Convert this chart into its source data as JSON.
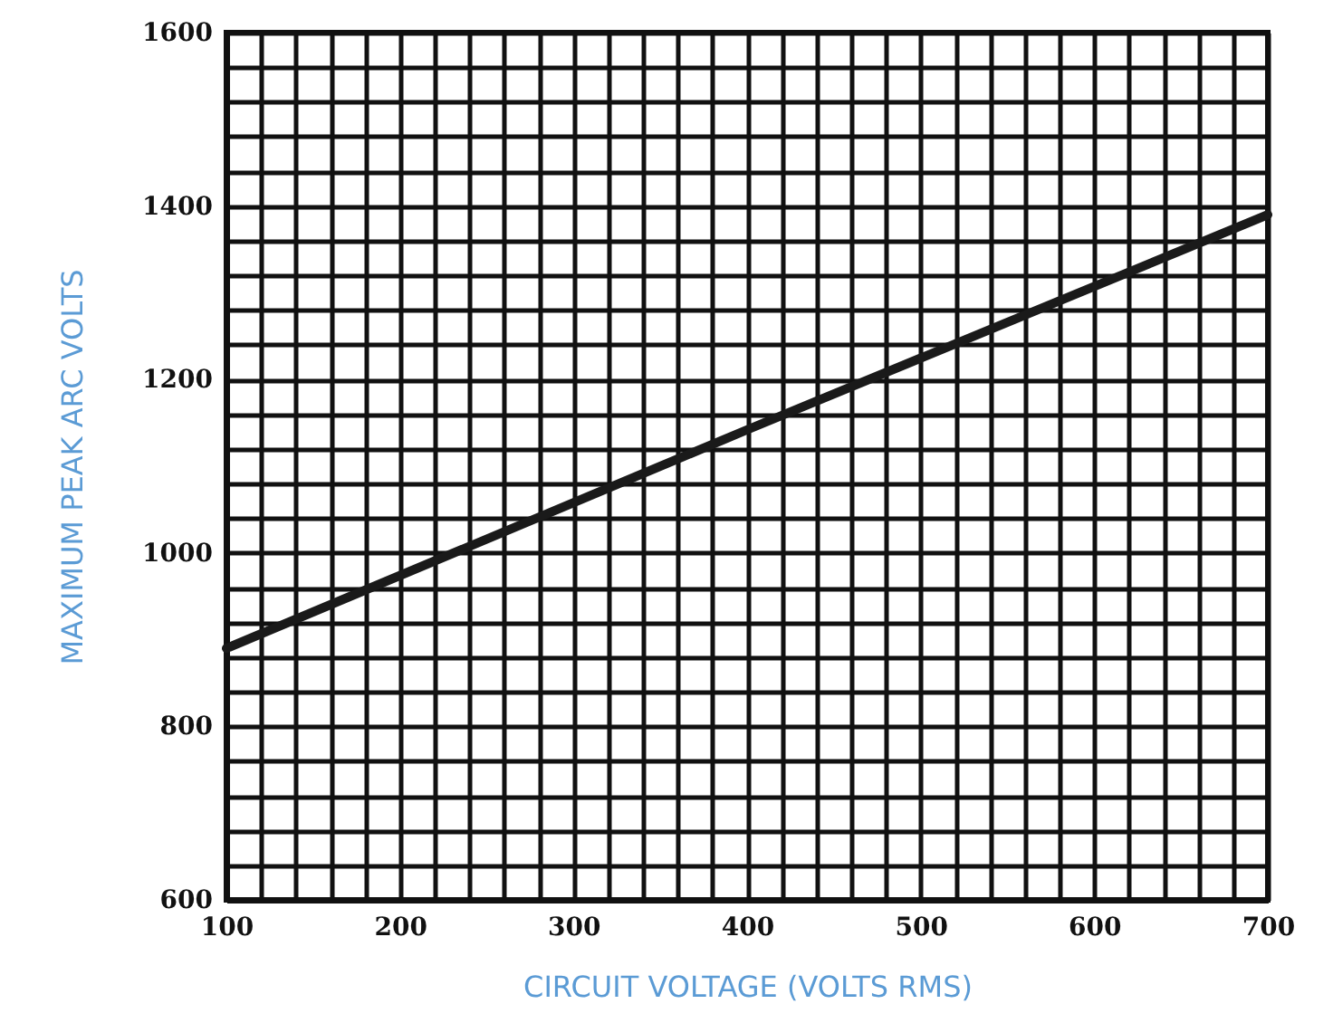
{
  "chart_data": {
    "type": "line",
    "xlabel": "CIRCUIT VOLTAGE (VOLTS RMS)",
    "ylabel": "MAXIMUM PEAK ARC VOLTS",
    "x": [
      100,
      400,
      700
    ],
    "series": [
      {
        "color": "#1a1a1a",
        "values": [
          890,
          1142,
          1390
        ]
      }
    ],
    "xlim": [
      100,
      700
    ],
    "ylim": [
      600,
      1600
    ],
    "xticks": [
      100,
      {
        "value": 120,
        "label": null
      },
      {
        "value": 140,
        "label": null
      },
      {
        "value": 160,
        "label": null
      },
      {
        "value": 180,
        "label": null
      },
      200,
      {
        "value": 220,
        "label": null
      },
      {
        "value": 240,
        "label": null
      },
      {
        "value": 260,
        "label": null
      },
      {
        "value": 280,
        "label": null
      },
      300,
      {
        "value": 320,
        "label": null
      },
      {
        "value": 340,
        "label": null
      },
      {
        "value": 360,
        "label": null
      },
      {
        "value": 380,
        "label": null
      },
      400,
      {
        "value": 420,
        "label": null
      },
      {
        "value": 440,
        "label": null
      },
      {
        "value": 460,
        "label": null
      },
      {
        "value": 480,
        "label": null
      },
      500,
      {
        "value": 520,
        "label": null
      },
      {
        "value": 540,
        "label": null
      },
      {
        "value": 560,
        "label": null
      },
      {
        "value": 580,
        "label": null
      },
      600,
      {
        "value": 620,
        "label": null
      },
      {
        "value": 640,
        "label": null
      },
      {
        "value": 660,
        "label": null
      },
      {
        "value": 680,
        "label": null
      },
      700
    ],
    "yticks": [
      600,
      {
        "value": 640,
        "label": null
      },
      {
        "value": 680,
        "label": null
      },
      {
        "value": 720,
        "label": null
      },
      {
        "value": 760,
        "label": null
      },
      800,
      {
        "value": 840,
        "label": null
      },
      {
        "value": 880,
        "label": null
      },
      {
        "value": 920,
        "label": null
      },
      {
        "value": 960,
        "label": null
      },
      1000,
      {
        "value": 1040,
        "label": null
      },
      {
        "value": 1080,
        "label": null
      },
      {
        "value": 1120,
        "label": null
      },
      {
        "value": 1160,
        "label": null
      },
      1200,
      {
        "value": 1240,
        "label": null
      },
      {
        "value": 1280,
        "label": null
      },
      {
        "value": 1320,
        "label": null
      },
      {
        "value": 1360,
        "label": null
      },
      1400,
      {
        "value": 1440,
        "label": null
      },
      {
        "value": 1480,
        "label": null
      },
      {
        "value": 1520,
        "label": null
      },
      {
        "value": 1560,
        "label": null
      },
      1600
    ],
    "grid": true,
    "line_style": "solid"
  }
}
